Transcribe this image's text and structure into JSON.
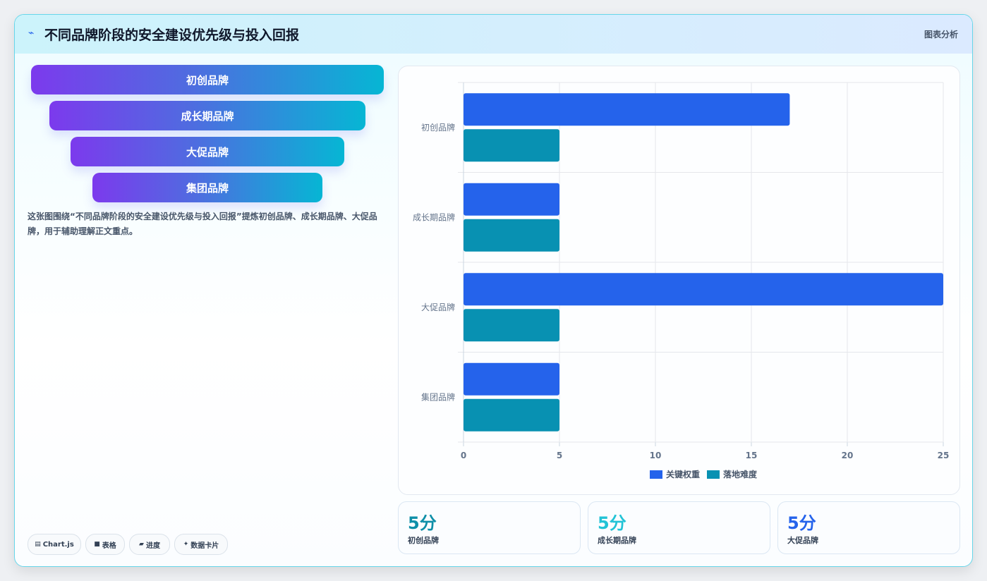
{
  "header": {
    "icon": "trend-line-icon",
    "title": "不同品牌阶段的安全建设优先级与投入回报",
    "tag": "图表分析"
  },
  "funnel": [
    {
      "label": "初创品牌"
    },
    {
      "label": "成长期品牌"
    },
    {
      "label": "大促品牌"
    },
    {
      "label": "集团品牌"
    }
  ],
  "description": "这张图围绕“不同品牌阶段的安全建设优先级与投入回报”提炼初创品牌、成长期品牌、大促品牌，用于辅助理解正文重点。",
  "pills": [
    {
      "icon": "chart-icon",
      "label": "Chart.js"
    },
    {
      "icon": "table-icon",
      "label": "表格"
    },
    {
      "icon": "progress-icon",
      "label": "进度"
    },
    {
      "icon": "sparkle-icon",
      "label": "数据卡片"
    }
  ],
  "stats": [
    {
      "value": "5分",
      "label": "初创品牌",
      "color": "#0e8fa8"
    },
    {
      "value": "5分",
      "label": "成长期品牌",
      "color": "#22c3d6"
    },
    {
      "value": "5分",
      "label": "大促品牌",
      "color": "#2563eb"
    }
  ],
  "chart_data": {
    "type": "bar",
    "orientation": "horizontal",
    "categories": [
      "初创品牌",
      "成长期品牌",
      "大促品牌",
      "集团品牌"
    ],
    "series": [
      {
        "name": "关键权重",
        "values": [
          17,
          5,
          25,
          5
        ],
        "color": "#2563eb"
      },
      {
        "name": "落地难度",
        "values": [
          5,
          5,
          5,
          5
        ],
        "color": "#0891b2"
      }
    ],
    "xlim": [
      0,
      25
    ],
    "xticks": [
      0,
      5,
      10,
      15,
      20,
      25
    ],
    "grid": true,
    "legend_position": "bottom"
  }
}
